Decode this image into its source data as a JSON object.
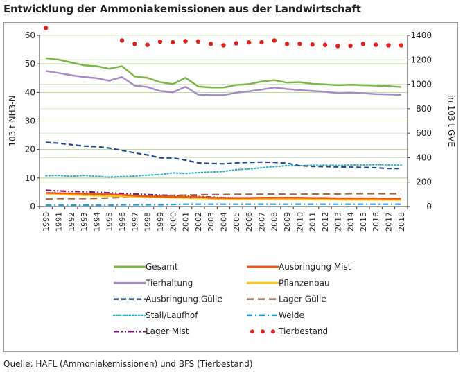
{
  "title": "Entwicklung der Ammoniakemissionen aus der Landwirtschaft",
  "source": "Quelle: HAFL (Ammoniakemissionen) und BFS (Tierbestand)",
  "chart_data": {
    "type": "line",
    "x": [
      "1990",
      "1991",
      "1992",
      "1993",
      "1994",
      "1995",
      "1996",
      "1997",
      "1998",
      "1999",
      "2000",
      "2001",
      "2002",
      "2003",
      "2004",
      "2005",
      "2006",
      "2007",
      "2008",
      "2009",
      "2010",
      "2011",
      "2012",
      "2013",
      "2014",
      "2015",
      "2016",
      "2017",
      "2018"
    ],
    "ylabel_left": "103 t NH3-N",
    "ylabel_right": "in 103 t GVE",
    "ylim_left": [
      0,
      60
    ],
    "ylim_right": [
      0,
      1400
    ],
    "yticks_left": [
      "0",
      "10",
      "20",
      "30",
      "40",
      "50",
      "60"
    ],
    "yticks_right": [
      "0",
      "200",
      "400",
      "600",
      "800",
      "1000",
      "1200",
      "1400"
    ],
    "grid": true,
    "legend_position": "bottom",
    "series": [
      {
        "name": "Gesamt",
        "axis": "left",
        "color": "#7ab648",
        "style": "solid",
        "values": [
          52,
          51.5,
          50.5,
          49.5,
          49.2,
          48.3,
          49.2,
          45.6,
          45.1,
          43.6,
          42.9,
          45.1,
          42.1,
          41.7,
          41.7,
          42.6,
          42.9,
          43.8,
          44.3,
          43.4,
          43.6,
          43,
          42.8,
          42.5,
          42.7,
          42.5,
          42.4,
          42.2,
          41.9
        ]
      },
      {
        "name": "Ausbringung Mist",
        "axis": "left",
        "color": "#e8591c",
        "style": "solid",
        "values": [
          4.8,
          4.7,
          4.6,
          4.5,
          4.4,
          4.3,
          4.1,
          3.8,
          3.6,
          3.5,
          3.4,
          3.4,
          3.3,
          3.1,
          3.0,
          3.0,
          3.0,
          3.1,
          3.1,
          3.1,
          3.1,
          3.0,
          3.0,
          2.9,
          2.9,
          2.9,
          2.9,
          2.8,
          2.8
        ]
      },
      {
        "name": "Tierhaltung",
        "axis": "left",
        "color": "#a68bc9",
        "style": "solid",
        "values": [
          47.5,
          46.8,
          46,
          45.4,
          45,
          44.1,
          45.4,
          42.4,
          41.9,
          40.5,
          40,
          42,
          39.2,
          39,
          39,
          39.9,
          40.4,
          41,
          41.7,
          41.2,
          40.8,
          40.5,
          40.2,
          39.8,
          39.9,
          39.7,
          39.4,
          39.3,
          39.1
        ]
      },
      {
        "name": "Pflanzenbau",
        "axis": "left",
        "color": "#ffc423",
        "style": "solid",
        "values": [
          4.5,
          4.3,
          4.1,
          4.0,
          3.8,
          3.7,
          3.6,
          3.4,
          3.3,
          3.2,
          3.1,
          3.0,
          2.9,
          2.8,
          2.7,
          2.6,
          2.6,
          2.6,
          2.6,
          2.6,
          2.6,
          2.5,
          2.5,
          2.5,
          2.4,
          2.4,
          2.4,
          2.4,
          2.3
        ]
      },
      {
        "name": "Ausbringung Gülle",
        "axis": "left",
        "color": "#1f4e8c",
        "style": "dashed",
        "values": [
          22.5,
          22.2,
          21.7,
          21.2,
          21,
          20.5,
          19.7,
          18.8,
          18.1,
          17.1,
          17,
          16.3,
          15.3,
          15.1,
          15,
          15.3,
          15.5,
          15.6,
          15.5,
          15.2,
          14.3,
          14.1,
          14,
          13.9,
          13.8,
          13.7,
          13.6,
          13.3,
          13.3
        ]
      },
      {
        "name": "Lager Gülle",
        "axis": "left",
        "color": "#9c6b4a",
        "style": "longdash",
        "values": [
          2.7,
          2.8,
          2.8,
          2.8,
          2.9,
          3.0,
          3.2,
          3.5,
          3.6,
          3.7,
          3.9,
          4.0,
          4.1,
          4.2,
          4.2,
          4.3,
          4.3,
          4.3,
          4.4,
          4.3,
          4.3,
          4.4,
          4.4,
          4.4,
          4.5,
          4.5,
          4.5,
          4.5,
          4.5
        ]
      },
      {
        "name": "Stall/Laufhof",
        "axis": "left",
        "color": "#3ab0c0",
        "style": "dotted",
        "values": [
          10.8,
          10.9,
          10.6,
          10.9,
          10.6,
          10.3,
          10.5,
          10.7,
          11,
          11.2,
          11.8,
          11.6,
          11.9,
          12.1,
          12.3,
          12.9,
          13.2,
          13.6,
          14,
          14.3,
          14.3,
          14.5,
          14.5,
          14.4,
          14.6,
          14.6,
          14.7,
          14.6,
          14.5
        ]
      },
      {
        "name": "Weide",
        "axis": "left",
        "color": "#1b9ee0",
        "style": "dashdot",
        "values": [
          0.5,
          0.5,
          0.5,
          0.5,
          0.5,
          0.5,
          0.6,
          0.6,
          0.6,
          0.6,
          0.7,
          0.8,
          0.8,
          0.8,
          0.8,
          0.8,
          0.8,
          0.8,
          0.8,
          0.8,
          0.8,
          0.8,
          0.8,
          0.8,
          0.8,
          0.8,
          0.8,
          0.8,
          0.8
        ]
      },
      {
        "name": "Lager Mist",
        "axis": "left",
        "color": "#7a1b6e",
        "style": "dashdotdot",
        "values": [
          5.7,
          5.5,
          5.3,
          5.2,
          5.0,
          4.8,
          4.6,
          4.4,
          4.2,
          4.0,
          3.9,
          3.7,
          3.5,
          3.3,
          3.1,
          3.0,
          2.9,
          2.8,
          2.8,
          2.7,
          2.7,
          2.6,
          2.6,
          2.5,
          2.5,
          2.5,
          2.4,
          2.4,
          2.4
        ]
      },
      {
        "name": "Tierbestand",
        "axis": "right",
        "color": "#e0201b",
        "style": "dots",
        "values": [
          1460,
          null,
          null,
          null,
          null,
          null,
          1358,
          1330,
          1322,
          1348,
          1343,
          1352,
          1350,
          1330,
          1318,
          1335,
          1342,
          1343,
          1358,
          1330,
          1330,
          1325,
          1322,
          1312,
          1315,
          1330,
          1323,
          1318,
          1318
        ]
      }
    ]
  }
}
